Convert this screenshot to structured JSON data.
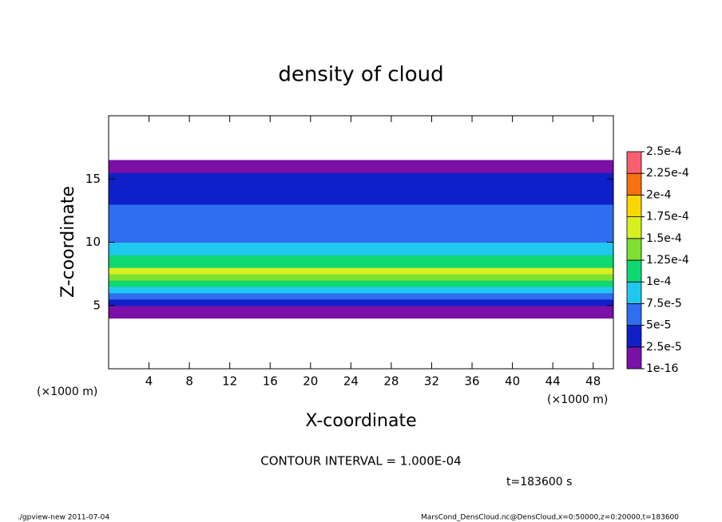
{
  "chart_data": {
    "type": "contour",
    "title": "density of cloud",
    "xlabel": "X-coordinate",
    "ylabel": "Z-coordinate",
    "xunit": "(×1000 m)",
    "yunit": "(×1000 m)",
    "contour_note": "CONTOUR INTERVAL = 1.000E-04",
    "time_note": "t=183600 s",
    "footer_left": "./gpview-new  2011-07-04",
    "footer_right": "MarsCond_DensCloud.nc@DensCloud,x=0:50000,z=0:20000,t=183600",
    "xlim": [
      0,
      50
    ],
    "ylim": [
      0,
      20
    ],
    "xticks": [
      4,
      8,
      12,
      16,
      20,
      24,
      28,
      32,
      36,
      40,
      44,
      48
    ],
    "yticks": [
      5,
      10,
      15
    ],
    "z": [
      4.25,
      4.75,
      5.25,
      5.75,
      6.25,
      6.75,
      7.25,
      7.75,
      8.25,
      8.75,
      9.25,
      9.75,
      10.25,
      10.75,
      11.25,
      11.75,
      12.25,
      12.75,
      13.25,
      13.75,
      14.25,
      14.75,
      15.25,
      15.75,
      16.25
    ],
    "values": [
      1e-05,
      2e-05,
      4e-05,
      7e-05,
      9e-05,
      0.00011,
      0.00014,
      0.00016,
      0.00012,
      0.0001,
      9e-05,
      8e-05,
      7e-05,
      6e-05,
      6e-05,
      5.5e-05,
      5e-05,
      5e-05,
      4.5e-05,
      4.5e-05,
      4e-05,
      4e-05,
      3e-05,
      2e-05,
      1e-05
    ],
    "levels": [
      {
        "value": 1e-16,
        "label": "1e-16"
      },
      {
        "value": 2.5e-05,
        "label": "2.5e-5"
      },
      {
        "value": 5e-05,
        "label": "5e-5"
      },
      {
        "value": 7.5e-05,
        "label": "7.5e-5"
      },
      {
        "value": 0.0001,
        "label": "1e-4"
      },
      {
        "value": 0.000125,
        "label": "1.25e-4"
      },
      {
        "value": 0.00015,
        "label": "1.5e-4"
      },
      {
        "value": 0.000175,
        "label": "1.75e-4"
      },
      {
        "value": 0.0002,
        "label": "2e-4"
      },
      {
        "value": 0.000225,
        "label": "2.25e-4"
      },
      {
        "value": 0.00025,
        "label": "2.5e-4"
      }
    ],
    "colors": [
      "#7a10a8",
      "#1020c8",
      "#2f6ef0",
      "#20c8f0",
      "#10d870",
      "#80e030",
      "#d8f020",
      "#f8d800",
      "#f87010",
      "#f86070"
    ]
  }
}
